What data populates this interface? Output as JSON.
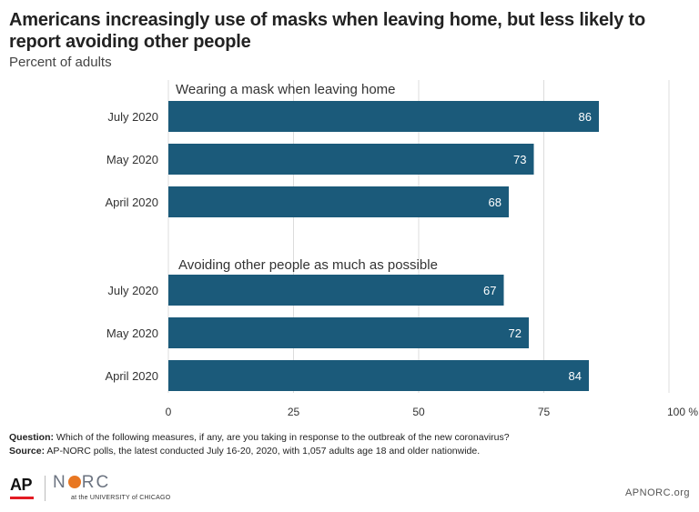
{
  "header": {
    "title": "Americans increasingly use of masks when leaving home, but less likely to report avoiding other people",
    "subtitle": "Percent of adults"
  },
  "chart_data": {
    "type": "bar",
    "orientation": "horizontal",
    "groups": [
      {
        "label": "Wearing a mask when leaving home",
        "categories": [
          "July 2020",
          "May 2020",
          "April 2020"
        ],
        "values": [
          86,
          73,
          68
        ]
      },
      {
        "label": "Avoiding other people as much as possible",
        "categories": [
          "July 2020",
          "May 2020",
          "April 2020"
        ],
        "values": [
          67,
          72,
          84
        ]
      }
    ],
    "x_ticks": [
      "0",
      "25",
      "50",
      "75",
      "100 %"
    ],
    "x_tick_values": [
      0,
      25,
      50,
      75,
      100
    ],
    "xlim": [
      0,
      100
    ],
    "bar_color": "#1b5a7a",
    "grid": true
  },
  "footnote": {
    "question_label": "Question:",
    "question_text": " Which of the following measures, if any, are you taking in response to the outbreak of the new coronavirus?",
    "source_label": "Source:",
    "source_text": " AP-NORC polls, the latest conducted July 16-20, 2020, with 1,057 adults age 18 and older nationwide."
  },
  "footer": {
    "ap_logo": "AP",
    "norc_left": "N",
    "norc_right": "RC",
    "norc_sub": "at the UNIVERSITY of CHICAGO",
    "site": "APNORC.org"
  }
}
